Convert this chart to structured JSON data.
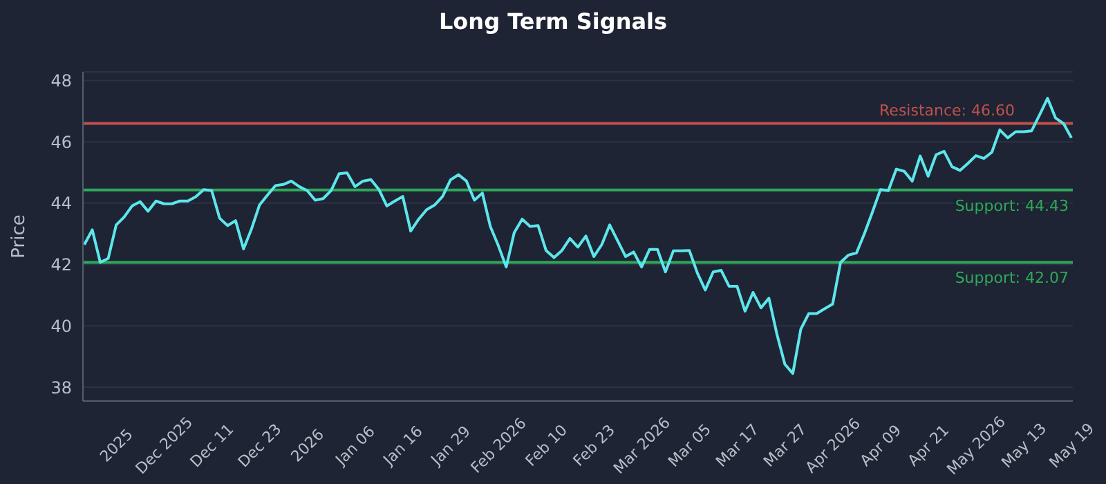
{
  "chart_data": {
    "type": "line",
    "title": "Long Term Signals",
    "ylabel": "Price",
    "categories": [
      null,
      null,
      null,
      null,
      "2025",
      null,
      null,
      null,
      null,
      null,
      "Dec 2025",
      null,
      null,
      null,
      null,
      null,
      "Dec 11",
      null,
      null,
      null,
      null,
      null,
      "Dec 23",
      null,
      null,
      null,
      null,
      null,
      "2026",
      null,
      null,
      null,
      null,
      null,
      "Jan 06",
      null,
      null,
      null,
      null,
      null,
      "Jan 16",
      null,
      null,
      null,
      null,
      null,
      "Jan 29",
      null,
      null,
      null,
      null,
      null,
      "Feb 2026",
      null,
      null,
      null,
      null,
      null,
      "Feb 10",
      null,
      null,
      null,
      null,
      null,
      "Feb 23",
      null,
      null,
      null,
      null,
      null,
      "Mar 2026",
      null,
      null,
      null,
      null,
      null,
      "Mar 05",
      null,
      null,
      null,
      null,
      null,
      "Mar 17",
      null,
      null,
      null,
      null,
      null,
      "Mar 27",
      null,
      null,
      null,
      null,
      null,
      "Apr 2026",
      null,
      null,
      null,
      null,
      null,
      "Apr 09",
      null,
      null,
      null,
      null,
      null,
      "Apr 21",
      null,
      null,
      null,
      null,
      null,
      "May 2026",
      null,
      null,
      null,
      null,
      null,
      "May 13",
      null,
      null,
      null,
      null,
      null,
      "May 19"
    ],
    "series": [
      {
        "color": "#5ce6ec",
        "values": [
          42.65,
          43.13,
          42.07,
          42.2,
          43.29,
          43.55,
          43.91,
          44.05,
          43.74,
          44.07,
          43.98,
          43.98,
          44.07,
          44.07,
          44.21,
          44.44,
          44.41,
          43.51,
          43.27,
          43.43,
          42.51,
          43.16,
          43.94,
          44.26,
          44.57,
          44.61,
          44.72,
          44.54,
          44.41,
          44.1,
          44.15,
          44.41,
          44.96,
          44.99,
          44.54,
          44.72,
          44.77,
          44.45,
          43.91,
          44.07,
          44.22,
          43.09,
          43.48,
          43.79,
          43.94,
          44.22,
          44.76,
          44.93,
          44.72,
          44.1,
          44.33,
          43.24,
          42.62,
          41.92,
          43.04,
          43.48,
          43.24,
          43.27,
          42.46,
          42.23,
          42.46,
          42.85,
          42.57,
          42.93,
          42.26,
          42.65,
          43.29,
          42.77,
          42.26,
          42.41,
          41.92,
          42.49,
          42.49,
          41.76,
          42.45,
          42.45,
          42.46,
          41.73,
          41.17,
          41.76,
          41.81,
          41.29,
          41.29,
          40.48,
          41.09,
          40.59,
          40.9,
          39.73,
          38.75,
          38.45,
          39.89,
          40.4,
          40.4,
          40.56,
          40.71,
          42.07,
          42.31,
          42.38,
          43.01,
          43.71,
          44.44,
          44.41,
          45.11,
          45.04,
          44.72,
          45.54,
          44.88,
          45.58,
          45.69,
          45.19,
          45.07,
          45.3,
          45.55,
          45.46,
          45.66,
          46.39,
          46.13,
          46.33,
          46.33,
          46.36,
          46.88,
          47.42,
          46.78,
          46.6,
          46.13
        ]
      }
    ],
    "ylim": [
      37.55,
      48.28
    ],
    "yticks": [
      38,
      40,
      42,
      44,
      46,
      48
    ],
    "grid": "y",
    "marker": "none",
    "line_style": "solid",
    "ref_lines": [
      {
        "axis": "y",
        "value": 46.6,
        "label": "Resistance: 46.60",
        "color": "#c0504d"
      },
      {
        "axis": "y",
        "value": 44.43,
        "label": "Support: 44.43",
        "color": "#2ea85a"
      },
      {
        "axis": "y",
        "value": 42.07,
        "label": "Support: 42.07",
        "color": "#2ea85a"
      }
    ]
  }
}
